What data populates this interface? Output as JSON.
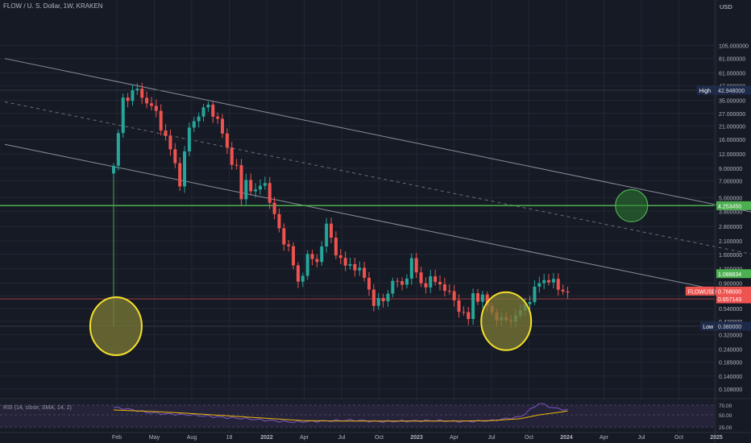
{
  "header": {
    "title": "FLOW / U. S. Dollar, 1W, KRAKEN",
    "currency": "USD"
  },
  "colors": {
    "background": "#161a25",
    "up": "#26a69a",
    "down": "#ef5350",
    "green_level": "#4caf50",
    "ellipse_stroke": "#f5e02b",
    "ellipse_fill": "#7c7a35",
    "trend_line": "#9ea3ad",
    "rsi_line": "#7e57c2",
    "rsi_sma": "#f0b90b"
  },
  "chart_data": {
    "type": "candlestick",
    "title": "FLOW / U. S. Dollar, 1W, KRAKEN",
    "symbol": "FLOWUSD",
    "y_scale": "log",
    "y_ticks": [
      "105.000000",
      "81.000000",
      "61.000000",
      "47.000000",
      "35.000000",
      "27.000000",
      "21.000000",
      "16.000000",
      "12.000000",
      "9.000000",
      "7.000000",
      "5.000000",
      "3.800000",
      "2.800000",
      "2.100000",
      "1.600000",
      "1.200000",
      "0.900000",
      "0.700000",
      "0.540000",
      "0.420000",
      "0.320000",
      "0.240000",
      "0.185000",
      "0.140000",
      "0.108000"
    ],
    "y_tick_values": [
      105,
      81,
      61,
      47,
      35,
      27,
      21,
      16,
      12,
      9,
      7,
      5,
      3.8,
      2.8,
      2.1,
      1.6,
      1.2,
      0.9,
      0.7,
      0.54,
      0.42,
      0.32,
      0.24,
      0.185,
      0.14,
      0.108
    ],
    "x_ticks": [
      "Feb",
      "May",
      "Aug",
      "18",
      "2022",
      "Apr",
      "Jul",
      "Oct",
      "2023",
      "Apr",
      "Jul",
      "Oct",
      "2024",
      "Apr",
      "Jul",
      "Oct",
      "2025"
    ],
    "labels": {
      "high": {
        "text": "High",
        "value": "42.948000"
      },
      "low": {
        "text": "Low",
        "value": "0.380000"
      },
      "green_level": {
        "value": "4.253450"
      },
      "level_2": {
        "value": "1.088834"
      },
      "symbol_price": {
        "text": "FLOWUSD",
        "value": "0.768000"
      },
      "level_3": {
        "value": "0.657143"
      }
    },
    "path": [
      [
        0,
        9
      ],
      [
        2,
        36
      ],
      [
        5,
        43
      ],
      [
        9,
        27
      ],
      [
        12,
        13
      ],
      [
        14,
        7
      ],
      [
        16,
        20
      ],
      [
        18,
        27
      ],
      [
        20,
        31
      ],
      [
        22,
        24
      ],
      [
        24,
        13
      ],
      [
        26,
        9
      ],
      [
        27,
        4.8
      ],
      [
        28,
        7
      ],
      [
        30,
        5.5
      ],
      [
        32,
        7
      ],
      [
        33,
        4.6
      ],
      [
        35,
        2.6
      ],
      [
        37,
        1.8
      ],
      [
        39,
        0.9
      ],
      [
        41,
        1.5
      ],
      [
        43,
        1.4
      ],
      [
        45,
        2.8
      ],
      [
        47,
        1.7
      ],
      [
        49,
        1.25
      ],
      [
        51,
        1.3
      ],
      [
        53,
        1.0
      ],
      [
        55,
        0.62
      ],
      [
        57,
        0.62
      ],
      [
        59,
        0.95
      ],
      [
        61,
        0.85
      ],
      [
        63,
        1.4
      ],
      [
        65,
        0.88
      ],
      [
        67,
        0.95
      ],
      [
        69,
        0.9
      ],
      [
        71,
        0.72
      ],
      [
        73,
        0.55
      ],
      [
        75,
        0.43
      ],
      [
        76,
        0.72
      ],
      [
        78,
        0.66
      ],
      [
        80,
        0.5
      ],
      [
        82,
        0.42
      ],
      [
        84,
        0.44
      ],
      [
        86,
        0.5
      ],
      [
        88,
        0.68
      ],
      [
        90,
        0.9
      ],
      [
        92,
        1.0
      ],
      [
        94,
        0.8
      ],
      [
        96,
        0.768
      ]
    ],
    "candles": {
      "count": 97,
      "timeframe": "1W",
      "first_close": 9.0,
      "last_close": 0.768
    },
    "rsi": {
      "label": "RSI (14, close, SMA, 14, 2)",
      "ticks": [
        "70.00",
        "50.00",
        "25.00"
      ],
      "tick_values": [
        70,
        50,
        25
      ],
      "path": [
        [
          0,
          65
        ],
        [
          3,
          62
        ],
        [
          7,
          55
        ],
        [
          11,
          52
        ],
        [
          16,
          50
        ],
        [
          20,
          47
        ],
        [
          24,
          44
        ],
        [
          28,
          42
        ],
        [
          33,
          38
        ],
        [
          38,
          35
        ],
        [
          44,
          37
        ],
        [
          50,
          39
        ],
        [
          56,
          36
        ],
        [
          62,
          37
        ],
        [
          68,
          38
        ],
        [
          74,
          36
        ],
        [
          80,
          38
        ],
        [
          86,
          46
        ],
        [
          90,
          74
        ],
        [
          93,
          64
        ],
        [
          96,
          60
        ]
      ],
      "sma_path": [
        [
          0,
          60
        ],
        [
          8,
          57
        ],
        [
          16,
          53
        ],
        [
          24,
          48
        ],
        [
          32,
          43
        ],
        [
          40,
          38
        ],
        [
          48,
          37
        ],
        [
          56,
          37
        ],
        [
          64,
          37
        ],
        [
          72,
          37
        ],
        [
          80,
          38
        ],
        [
          86,
          42
        ],
        [
          90,
          50
        ],
        [
          94,
          55
        ],
        [
          96,
          58
        ]
      ]
    },
    "annotations": [
      {
        "type": "ellipse",
        "role": "launch-low",
        "week": 0.5,
        "price": 0.38
      },
      {
        "type": "ellipse",
        "role": "bottom-area",
        "week": 83,
        "price": 0.42
      },
      {
        "type": "circle",
        "role": "target",
        "week": 109.5,
        "price": 4.25
      }
    ],
    "trend_lines": [
      {
        "role": "upper",
        "points": [
          [
            -23,
            81
          ],
          [
            148,
            2.9
          ]
        ]
      },
      {
        "role": "middle-dashed",
        "points": [
          [
            -23,
            34
          ],
          [
            148,
            1.25
          ]
        ]
      },
      {
        "role": "lower",
        "points": [
          [
            -23,
            14.5
          ],
          [
            148,
            0.53
          ]
        ]
      }
    ],
    "grid": true
  }
}
